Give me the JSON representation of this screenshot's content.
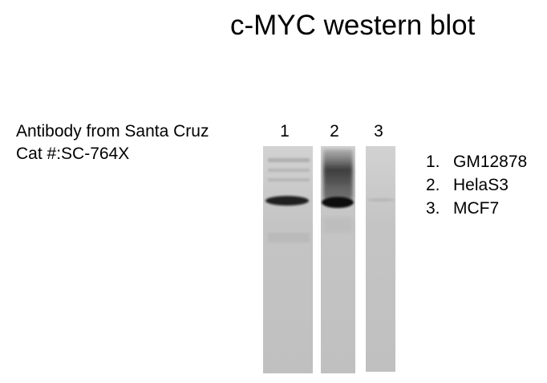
{
  "title": "c-MYC western blot",
  "antibody": {
    "line1": "Antibody from Santa Cruz",
    "line2": "Cat #:SC-764X"
  },
  "lanes": [
    {
      "number": "1",
      "band_intensity": 0.9
    },
    {
      "number": "2",
      "band_intensity": 1.0
    },
    {
      "number": "3",
      "band_intensity": 0.2
    }
  ],
  "legend": [
    {
      "num": "1.",
      "label": "GM12878"
    },
    {
      "num": "2.",
      "label": "HelaS3"
    },
    {
      "num": "3.",
      "label": "MCF7"
    }
  ],
  "colors": {
    "membrane": "#c6c6c6",
    "band": "#111111",
    "background": "#ffffff"
  }
}
